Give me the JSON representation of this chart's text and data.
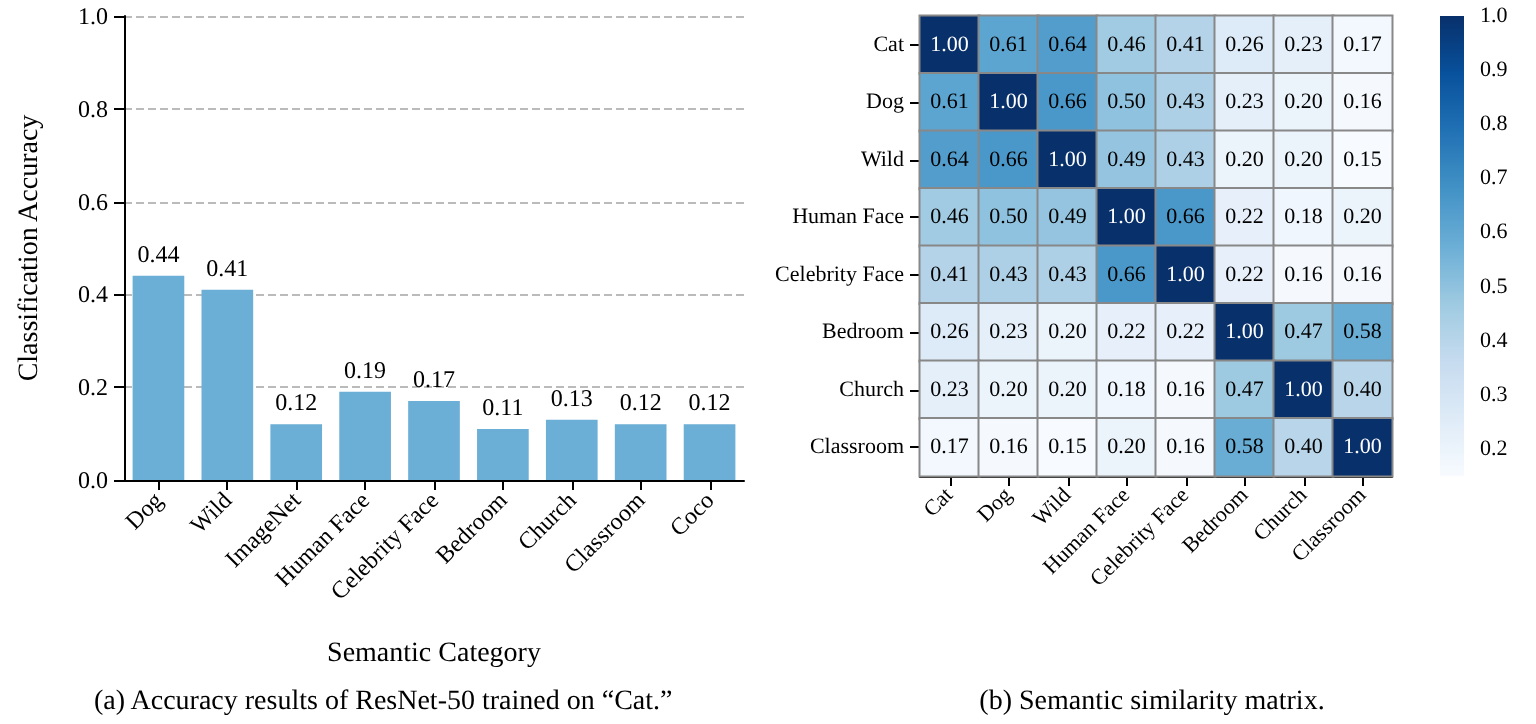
{
  "chart_data": [
    {
      "type": "bar",
      "xlabel": "Semantic Category",
      "ylabel": "Classification Accuracy",
      "categories": [
        "Dog",
        "Wild",
        "ImageNet",
        "Human Face",
        "Celebrity Face",
        "Bedroom",
        "Church",
        "Classroom",
        "Coco"
      ],
      "values": [
        0.44,
        0.41,
        0.12,
        0.19,
        0.17,
        0.11,
        0.13,
        0.12,
        0.12
      ],
      "color": "#6baed6",
      "ylim": [
        0,
        1
      ],
      "yticks": [
        {
          "value": 0,
          "label": "0.0"
        },
        0.2,
        0.4,
        0.6,
        0.8,
        {
          "value": 1,
          "label": "1.0"
        }
      ],
      "grid": "y",
      "data_labels": true,
      "annotations": [
        "(a) Accuracy results of ResNet-50 trained on “Cat.”"
      ]
    },
    {
      "type": "heatmap",
      "categories": [
        "Cat",
        "Dog",
        "Wild",
        "Human Face",
        "Celebrity Face",
        "Bedroom",
        "Church",
        "Classroom"
      ],
      "y_categories": [
        "Cat",
        "Dog",
        "Wild",
        "Human Face",
        "Celebrity Face",
        "Bedroom",
        "Church",
        "Classroom"
      ],
      "cells": [
        [
          1.0,
          0.61,
          0.64,
          0.46,
          0.41,
          0.26,
          0.23,
          0.17
        ],
        [
          0.61,
          1.0,
          0.66,
          0.5,
          0.43,
          0.23,
          0.2,
          0.16
        ],
        [
          0.64,
          0.66,
          1.0,
          0.49,
          0.43,
          0.2,
          0.2,
          0.15
        ],
        [
          0.46,
          0.5,
          0.49,
          1.0,
          0.66,
          0.22,
          0.18,
          0.2
        ],
        [
          0.41,
          0.43,
          0.43,
          0.66,
          1.0,
          0.22,
          0.16,
          0.16
        ],
        [
          0.26,
          0.23,
          0.2,
          0.22,
          0.22,
          1.0,
          0.47,
          0.58
        ],
        [
          0.23,
          0.2,
          0.2,
          0.18,
          0.16,
          0.47,
          1.0,
          0.4
        ],
        [
          0.17,
          0.16,
          0.15,
          0.2,
          0.16,
          0.58,
          0.4,
          1.0
        ]
      ],
      "cell_labels": [
        [
          "1.00",
          "0.61",
          "0.64",
          "0.46",
          "0.41",
          "0.26",
          "0.23",
          "0.17"
        ],
        [
          "0.61",
          "1.00",
          "0.66",
          "0.50",
          "0.43",
          "0.23",
          "0.20",
          "0.16"
        ],
        [
          "0.64",
          "0.66",
          "1.00",
          "0.49",
          "0.43",
          "0.20",
          "0.20",
          "0.15"
        ],
        [
          "0.46",
          "0.50",
          "0.49",
          "1.00",
          "0.66",
          "0.22",
          "0.18",
          "0.20"
        ],
        [
          "0.41",
          "0.43",
          "0.43",
          "0.66",
          "1.00",
          "0.22",
          "0.16",
          "0.16"
        ],
        [
          "0.26",
          "0.23",
          "0.20",
          "0.22",
          "0.22",
          "1.00",
          "0.47",
          "0.58"
        ],
        [
          "0.23",
          "0.20",
          "0.20",
          "0.18",
          "0.16",
          "0.47",
          "1.00",
          "0.40"
        ],
        [
          "0.17",
          "0.16",
          "0.15",
          "0.20",
          "0.16",
          "0.58",
          "0.40",
          "1.00"
        ]
      ],
      "clim": [
        0.15,
        1.0
      ],
      "cticks": [
        0.2,
        0.3,
        0.4,
        0.5,
        0.6,
        0.7,
        0.8,
        0.9,
        {
          "value": 1,
          "label": "1.0"
        }
      ],
      "annotations": [
        "(b) Semantic similarity matrix."
      ]
    }
  ]
}
